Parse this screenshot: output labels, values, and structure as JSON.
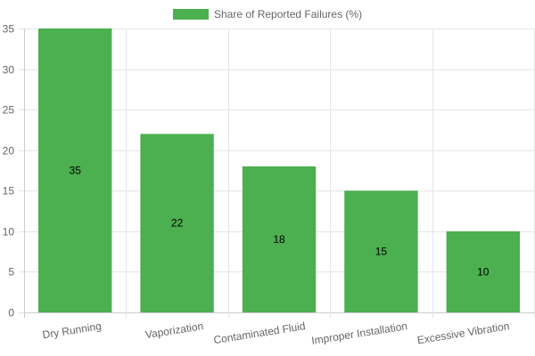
{
  "chart_data": {
    "type": "bar",
    "categories": [
      "Dry Running",
      "Vaporization",
      "Contaminated Fluid",
      "Improper Installation",
      "Excessive Vibration"
    ],
    "series": [
      {
        "name": "Share of Reported Failures (%)",
        "values": [
          35,
          22,
          18,
          15,
          10
        ]
      }
    ],
    "yticks": [
      "0",
      "5",
      "10",
      "15",
      "20",
      "25",
      "30",
      "35"
    ],
    "ylim": [
      0,
      35
    ],
    "grid": true,
    "legend": "top-center",
    "bar_color": "#4caf50",
    "data_labels": [
      "35",
      "22",
      "18",
      "15",
      "10"
    ]
  }
}
